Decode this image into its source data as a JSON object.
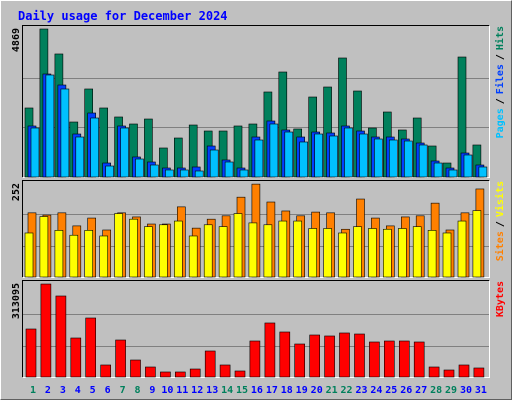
{
  "chart_data": [
    {
      "type": "bar",
      "title": "Daily usage for December 2024",
      "categories": [
        "1",
        "2",
        "3",
        "4",
        "5",
        "6",
        "7",
        "8",
        "9",
        "10",
        "11",
        "12",
        "13",
        "14",
        "15",
        "16",
        "17",
        "18",
        "19",
        "20",
        "21",
        "22",
        "23",
        "24",
        "25",
        "26",
        "27",
        "28",
        "29",
        "30",
        "31"
      ],
      "category_colors": [
        "#00805c",
        "#0000ff",
        "#0000ff",
        "#0000ff",
        "#0000ff",
        "#0000ff",
        "#00805c",
        "#00805c",
        "#0000ff",
        "#0000ff",
        "#0000ff",
        "#0000ff",
        "#0000ff",
        "#00805c",
        "#00805c",
        "#0000ff",
        "#0000ff",
        "#0000ff",
        "#0000ff",
        "#0000ff",
        "#00805c",
        "#00805c",
        "#0000ff",
        "#0000ff",
        "#0000ff",
        "#0000ff",
        "#0000ff",
        "#00805c",
        "#00805c",
        "#0000ff",
        "#0000ff"
      ],
      "ylim": [
        0,
        4869
      ],
      "yticks": [
        4869
      ],
      "legend_separator": "/",
      "series": [
        {
          "name": "Pages",
          "color": "#00c0ff",
          "values": [
            1601,
            3333,
            2876,
            1307,
            1928,
            359,
            1601,
            588,
            392,
            229,
            229,
            196,
            882,
            490,
            229,
            1209,
            1732,
            1470,
            1144,
            1405,
            1340,
            1601,
            1405,
            1242,
            1209,
            1176,
            1046,
            457,
            229,
            719,
            327
          ]
        },
        {
          "name": "Files",
          "color": "#0040ff",
          "values": [
            1667,
            3366,
            3006,
            1405,
            2091,
            457,
            1667,
            654,
            490,
            294,
            294,
            327,
            1013,
            556,
            294,
            1307,
            1830,
            1536,
            1307,
            1470,
            1438,
            1667,
            1503,
            1307,
            1307,
            1242,
            1111,
            523,
            294,
            784,
            392
          ]
        },
        {
          "name": "Hits",
          "color": "#00805c",
          "values": [
            2255,
            4836,
            4020,
            1797,
            2876,
            2255,
            1961,
            1732,
            1895,
            948,
            1274,
            1699,
            1503,
            1503,
            1667,
            1732,
            2778,
            3431,
            1569,
            2614,
            2941,
            3889,
            2810,
            1601,
            2124,
            1536,
            1928,
            1013,
            457,
            3921,
            1046
          ]
        }
      ]
    },
    {
      "type": "bar",
      "ylim": [
        0,
        252
      ],
      "yticks": [
        252
      ],
      "legend_separator": "/",
      "series": [
        {
          "name": "Sites",
          "color": "#ff8000",
          "values": [
            172,
            166,
            172,
            137,
            158,
            126,
            172,
            161,
            142,
            142,
            188,
            131,
            155,
            164,
            214,
            249,
            201,
            177,
            164,
            174,
            172,
            128,
            209,
            158,
            137,
            161,
            164,
            198,
            126,
            172,
            236
          ]
        },
        {
          "name": "Visits",
          "color": "#ffff00",
          "values": [
            118,
            162,
            125,
            112,
            125,
            110,
            170,
            155,
            135,
            140,
            150,
            110,
            140,
            135,
            170,
            145,
            140,
            150,
            150,
            130,
            130,
            118,
            135,
            130,
            128,
            130,
            135,
            125,
            118,
            150,
            178
          ]
        }
      ]
    },
    {
      "type": "bar",
      "ylim": [
        0,
        313095
      ],
      "yticks": [
        313095
      ],
      "series": [
        {
          "name": "KBytes",
          "color": "#ff0000",
          "values": [
            159878,
            309700,
            269800,
            129900,
            196500,
            40000,
            123200,
            56600,
            33300,
            16700,
            16700,
            26600,
            86600,
            40000,
            20000,
            119900,
            179900,
            149900,
            109900,
            139900,
            136600,
            146600,
            143200,
            116600,
            119900,
            119900,
            116600,
            33300,
            23300,
            40000,
            30000
          ]
        }
      ]
    }
  ]
}
